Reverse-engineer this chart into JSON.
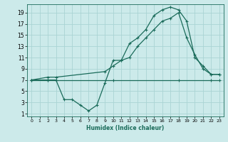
{
  "xlabel": "Humidex (Indice chaleur)",
  "bg_color": "#cceaea",
  "line_color": "#1a6b5a",
  "grid_color": "#aad4d4",
  "xlim": [
    -0.5,
    23.5
  ],
  "ylim": [
    0.5,
    20.5
  ],
  "xticks": [
    0,
    1,
    2,
    3,
    4,
    5,
    6,
    7,
    8,
    9,
    10,
    11,
    12,
    13,
    14,
    15,
    16,
    17,
    18,
    19,
    20,
    21,
    22,
    23
  ],
  "yticks": [
    1,
    3,
    5,
    7,
    9,
    11,
    13,
    15,
    17,
    19
  ],
  "line1_x": [
    0,
    2,
    3,
    10,
    18,
    22,
    23
  ],
  "line1_y": [
    7,
    7,
    7,
    7,
    7,
    7,
    7
  ],
  "line2_x": [
    0,
    2,
    3,
    4,
    5,
    6,
    7,
    8,
    9,
    10,
    11,
    12,
    13,
    14,
    15,
    16,
    17,
    18,
    19,
    20,
    21,
    22,
    23
  ],
  "line2_y": [
    7,
    7,
    7,
    3.5,
    3.5,
    2.5,
    1.5,
    2.5,
    6.5,
    10.5,
    10.5,
    13.5,
    14.5,
    16,
    18.5,
    19.5,
    20,
    19.5,
    17.5,
    11,
    9.5,
    8,
    8
  ],
  "line3_x": [
    0,
    2,
    3,
    9,
    10,
    11,
    12,
    13,
    14,
    15,
    16,
    17,
    18,
    19,
    20,
    21,
    22,
    23
  ],
  "line3_y": [
    7,
    7.5,
    7.5,
    8.5,
    9.5,
    10.5,
    11,
    13,
    14.5,
    16,
    17.5,
    18,
    19,
    14.5,
    11.5,
    9,
    8,
    8
  ],
  "marker": "+"
}
